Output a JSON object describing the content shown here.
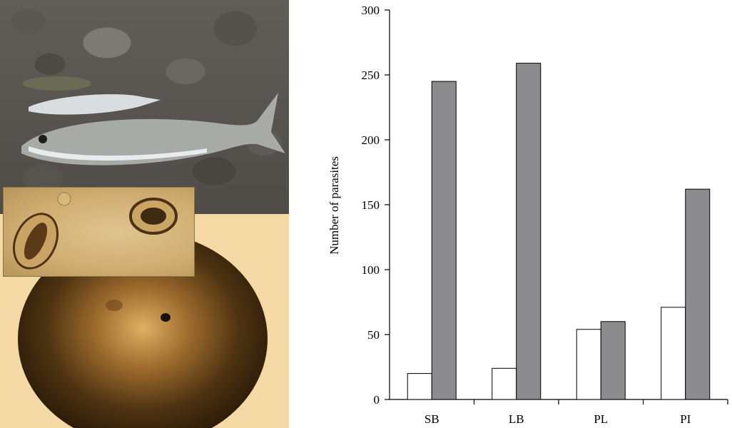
{
  "photos": {
    "panels": [
      "fish-on-stones",
      "parasite-micrograph",
      "petri-dish-view"
    ]
  },
  "chart_data": {
    "type": "bar",
    "categories": [
      "SB",
      "LB",
      "PL",
      "PI"
    ],
    "series": [
      {
        "values": [
          20,
          24,
          54,
          71
        ],
        "color": "#ffffff"
      },
      {
        "values": [
          245,
          259,
          60,
          162
        ],
        "color": "#8c8c8e"
      }
    ],
    "title": "",
    "xlabel": "",
    "ylabel": "Number of parasites",
    "ylim": [
      0,
      300
    ],
    "yticks": [
      0,
      50,
      100,
      150,
      200,
      250,
      300
    ],
    "grid": false,
    "legend": false
  }
}
